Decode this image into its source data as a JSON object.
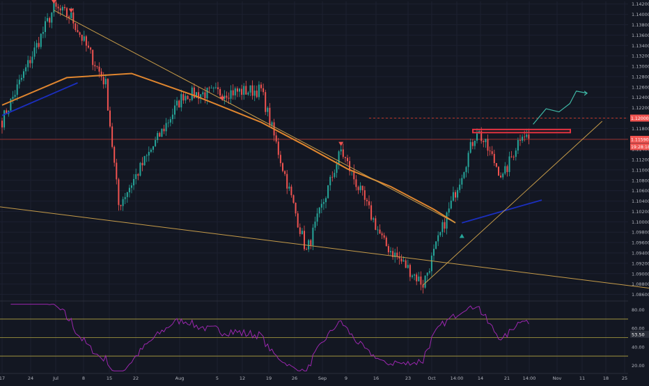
{
  "colors": {
    "background": "#131722",
    "grid": "#1c2030",
    "up_candle": "#26a69a",
    "down_candle": "#ef5350",
    "ema_orange": "#e0862f",
    "sma_blue": "#1b2fbf",
    "trendline": "#c79c49",
    "support_line": "#d4a35a",
    "resistance_zone": "#e53340",
    "price_line": "#c0392b",
    "projection_arrow": "#3fb8a6",
    "rsi_line": "#9c27b0",
    "rsi_band": "#b5a642",
    "axis_text": "#b2b5be",
    "marker_down": "#ef5350",
    "marker_up": "#26a69a",
    "price_label_bg": "#ef5350"
  },
  "chart_data": [
    {
      "type": "candlestick",
      "panel": "price",
      "ylim": [
        1.085,
        1.1425
      ],
      "y_ticks": [
        "1.14200",
        "1.14000",
        "1.13800",
        "1.13600",
        "1.13400",
        "1.13200",
        "1.13000",
        "1.12800",
        "1.12600",
        "1.12400",
        "1.12200",
        "1.12000",
        "1.11800",
        "1.11600",
        "1.11400",
        "1.11200",
        "1.11000",
        "1.10800",
        "1.10600",
        "1.10400",
        "1.10200",
        "1.10000",
        "1.09800",
        "1.09600",
        "1.09400",
        "1.09200",
        "1.09000",
        "1.08800",
        "1.08600"
      ],
      "x_ticks": [
        "17",
        "24",
        "Jul",
        "8",
        "15",
        "22",
        "Aug",
        "5",
        "12",
        "19",
        "26",
        "Sep",
        "9",
        "16",
        "23",
        "Oct",
        "14:00",
        "14",
        "21",
        "14:00",
        "Nov",
        "11",
        "18",
        "25"
      ],
      "key_prices": [
        {
          "label": "1.12000",
          "value": 1.12,
          "style": "dashed-red"
        },
        {
          "label": "1.11590",
          "value": 1.1159,
          "style": "solid-red"
        },
        {
          "label": "19:28:18",
          "value": 1.1145,
          "style": "countdown"
        }
      ],
      "resistance_zone": {
        "from": 1.1172,
        "to": 1.1178
      },
      "swing_points": [
        {
          "label": "H",
          "x_day": 24,
          "price": 1.1412
        },
        {
          "label": "H",
          "x_day": 32,
          "price": 1.1395
        },
        {
          "label": "H",
          "x_day": 48,
          "price": 1.1265
        },
        {
          "label": "L",
          "x_day": 54,
          "price": 1.1032
        },
        {
          "label": "H",
          "x_day": 84,
          "price": 1.1245
        },
        {
          "label": "H",
          "x_day": 120,
          "price": 1.1254
        },
        {
          "label": "L",
          "x_day": 141,
          "price": 1.0942
        },
        {
          "label": "H",
          "x_day": 157,
          "price": 1.1138
        },
        {
          "label": "L",
          "x_day": 177,
          "price": 1.0958
        },
        {
          "label": "L",
          "x_day": 195,
          "price": 1.088
        },
        {
          "label": "H",
          "x_day": 220,
          "price": 1.1178
        },
        {
          "label": "L",
          "x_day": 232,
          "price": 1.1085
        },
        {
          "label": "H",
          "x_day": 241,
          "price": 1.1175
        },
        {
          "label": "C",
          "x_day": 244,
          "price": 1.1159
        }
      ],
      "ema_points": [
        {
          "x_day": 0,
          "price": 1.1225
        },
        {
          "x_day": 30,
          "price": 1.1278
        },
        {
          "x_day": 60,
          "price": 1.1286
        },
        {
          "x_day": 90,
          "price": 1.1242
        },
        {
          "x_day": 120,
          "price": 1.1192
        },
        {
          "x_day": 140,
          "price": 1.1148
        },
        {
          "x_day": 160,
          "price": 1.1102
        },
        {
          "x_day": 180,
          "price": 1.1068
        },
        {
          "x_day": 200,
          "price": 1.1024
        },
        {
          "x_day": 210,
          "price": 1.0998
        }
      ],
      "sma_points": [
        {
          "x_day": 0,
          "price": 1.1205
        },
        {
          "x_day": 35,
          "price": 1.1268
        }
      ],
      "sma_points_2": [
        {
          "x_day": 213,
          "price": 1.0998
        },
        {
          "x_day": 250,
          "price": 1.1042
        }
      ],
      "trendlines": [
        {
          "from": {
            "x_day": 24,
            "price": 1.1408
          },
          "to": {
            "x_day": 210,
            "price": 1.0998
          }
        },
        {
          "from": {
            "x_day": -5,
            "price": 1.1031
          },
          "to": {
            "x_day": 300,
            "price": 1.0872
          }
        },
        {
          "from": {
            "x_day": 195,
            "price": 1.0878
          },
          "to": {
            "x_day": 278,
            "price": 1.1194
          }
        }
      ],
      "projection": [
        {
          "x_day": 246,
          "price": 1.1188
        },
        {
          "x_day": 252,
          "price": 1.1218
        },
        {
          "x_day": 258,
          "price": 1.1212
        },
        {
          "x_day": 263,
          "price": 1.1228
        },
        {
          "x_day": 266,
          "price": 1.1252
        },
        {
          "x_day": 271,
          "price": 1.1248
        }
      ]
    },
    {
      "type": "line",
      "panel": "rsi",
      "ylim": [
        12,
        88
      ],
      "y_ticks": [
        "80.00",
        "60.00",
        "40.00",
        "20.00"
      ],
      "bands": [
        70,
        50,
        30
      ],
      "current_label": "53.50",
      "current_value": 53.5
    }
  ]
}
